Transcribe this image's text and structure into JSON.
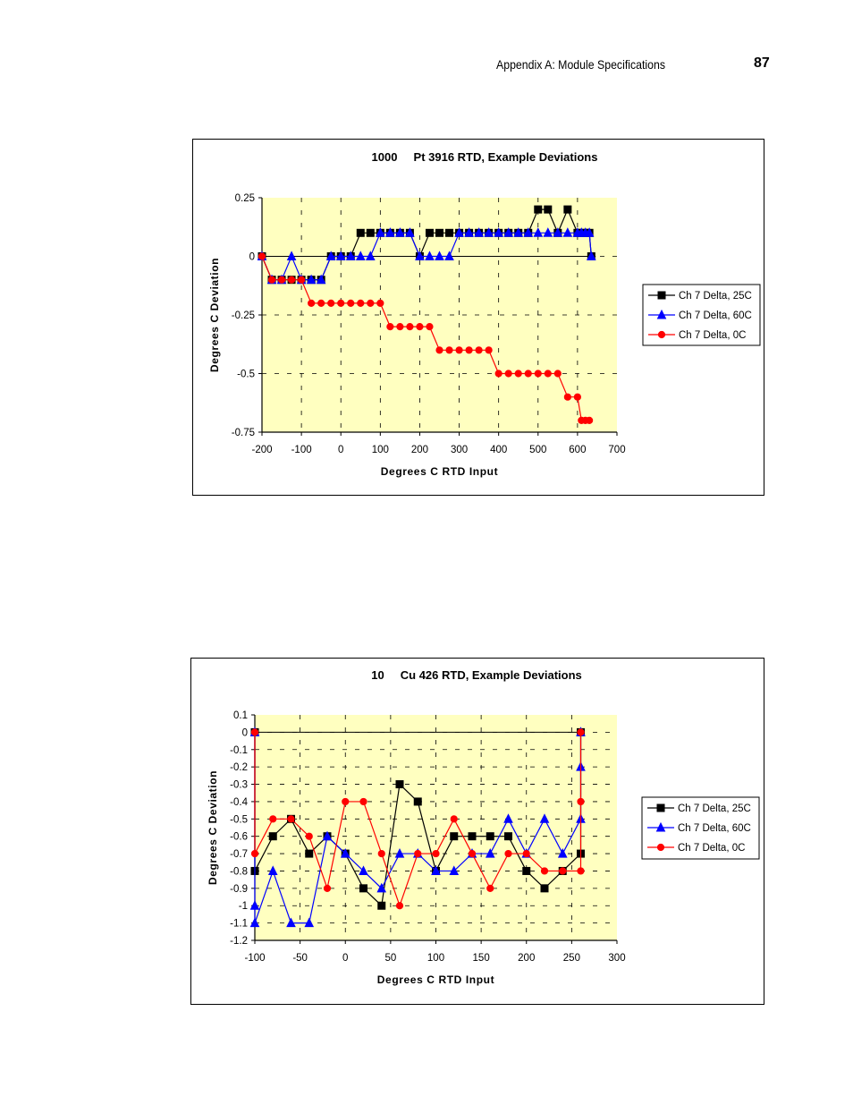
{
  "header": {
    "section_title": "Appendix A: Module Specifications",
    "page_number": "87"
  },
  "colors": {
    "plot_background": "#FFFFC0",
    "series_25c": "#000000",
    "series_60c": "#0000FF",
    "series_0c": "#FF0000"
  },
  "chart_data": [
    {
      "type": "line",
      "title": "1000     Pt 3916 RTD, Example Deviations",
      "xlabel": "Degrees C RTD Input",
      "ylabel": "Degrees C Deviation",
      "xlim": [
        -200,
        700
      ],
      "ylim": [
        -0.75,
        0.25
      ],
      "xticks": [
        -200,
        -100,
        0,
        100,
        200,
        300,
        400,
        500,
        600,
        700
      ],
      "yticks": [
        0.25,
        0,
        -0.25,
        -0.5,
        -0.75
      ],
      "xtick_labels": [
        "-200",
        "-100",
        "0",
        "100",
        "200",
        "300",
        "400",
        "500",
        "600",
        "700"
      ],
      "ytick_labels": [
        "0.25",
        "0",
        "-0.25",
        "-0.5",
        "-0.75"
      ],
      "grid": true,
      "legend": "right",
      "series": [
        {
          "name": "Ch 7 Delta, 25C",
          "marker": "square",
          "x": [
            -200,
            -175,
            -150,
            -125,
            -100,
            -75,
            -50,
            -25,
            0,
            25,
            50,
            75,
            100,
            125,
            150,
            175,
            200,
            225,
            250,
            275,
            300,
            325,
            350,
            375,
            400,
            425,
            450,
            475,
            500,
            525,
            550,
            575,
            600,
            610,
            620,
            630,
            635
          ],
          "y": [
            0,
            -0.1,
            -0.1,
            -0.1,
            -0.1,
            -0.1,
            -0.1,
            0,
            0,
            0,
            0.1,
            0.1,
            0.1,
            0.1,
            0.1,
            0.1,
            0,
            0.1,
            0.1,
            0.1,
            0.1,
            0.1,
            0.1,
            0.1,
            0.1,
            0.1,
            0.1,
            0.1,
            0.2,
            0.2,
            0.1,
            0.2,
            0.1,
            0.1,
            0.1,
            0.1,
            0
          ]
        },
        {
          "name": "Ch 7 Delta, 60C",
          "marker": "triangle",
          "x": [
            -200,
            -175,
            -150,
            -125,
            -100,
            -75,
            -50,
            -25,
            0,
            25,
            50,
            75,
            100,
            125,
            150,
            175,
            200,
            225,
            250,
            275,
            300,
            325,
            350,
            375,
            400,
            425,
            450,
            475,
            500,
            525,
            550,
            575,
            600,
            610,
            620,
            630,
            635
          ],
          "y": [
            0,
            -0.1,
            -0.1,
            0,
            -0.1,
            -0.1,
            -0.1,
            0,
            0,
            0,
            0,
            0,
            0.1,
            0.1,
            0.1,
            0.1,
            0,
            0,
            0,
            0,
            0.1,
            0.1,
            0.1,
            0.1,
            0.1,
            0.1,
            0.1,
            0.1,
            0.1,
            0.1,
            0.1,
            0.1,
            0.1,
            0.1,
            0.1,
            0.1,
            0
          ]
        },
        {
          "name": "Ch 7 Delta, 0C",
          "marker": "circle",
          "x": [
            -200,
            -175,
            -150,
            -125,
            -100,
            -75,
            -50,
            -25,
            0,
            25,
            50,
            75,
            100,
            125,
            150,
            175,
            200,
            225,
            250,
            275,
            300,
            325,
            350,
            375,
            400,
            425,
            450,
            475,
            500,
            525,
            550,
            575,
            600,
            610,
            620,
            630
          ],
          "y": [
            0,
            -0.1,
            -0.1,
            -0.1,
            -0.1,
            -0.2,
            -0.2,
            -0.2,
            -0.2,
            -0.2,
            -0.2,
            -0.2,
            -0.2,
            -0.3,
            -0.3,
            -0.3,
            -0.3,
            -0.3,
            -0.4,
            -0.4,
            -0.4,
            -0.4,
            -0.4,
            -0.4,
            -0.5,
            -0.5,
            -0.5,
            -0.5,
            -0.5,
            -0.5,
            -0.5,
            -0.6,
            -0.6,
            -0.7,
            -0.7,
            -0.7
          ]
        }
      ]
    },
    {
      "type": "line",
      "title": "10     Cu 426 RTD, Example Deviations",
      "xlabel": "Degrees C RTD Input",
      "ylabel": "Degrees C Deviation",
      "xlim": [
        -100,
        300
      ],
      "ylim": [
        -1.2,
        0.1
      ],
      "xticks": [
        -100,
        -50,
        0,
        50,
        100,
        150,
        200,
        250,
        300
      ],
      "yticks": [
        0.1,
        0,
        -0.1,
        -0.2,
        -0.3,
        -0.4,
        -0.5,
        -0.6,
        -0.7,
        -0.8,
        -0.9,
        -1,
        -1.1,
        -1.2
      ],
      "xtick_labels": [
        "-100",
        "-50",
        "0",
        "50",
        "100",
        "150",
        "200",
        "250",
        "300"
      ],
      "ytick_labels": [
        "0.1",
        "0",
        "-0.1",
        "-0.2",
        "-0.3",
        "-0.4",
        "-0.5",
        "-0.6",
        "-0.7",
        "-0.8",
        "-0.9",
        "-1",
        "-1.1",
        "-1.2"
      ],
      "grid": true,
      "legend": "right",
      "series": [
        {
          "name": "Ch 7 Delta, 25C",
          "marker": "square",
          "x": [
            -100,
            -100,
            -80,
            -60,
            -40,
            -20,
            0,
            20,
            40,
            60,
            80,
            100,
            120,
            140,
            160,
            180,
            200,
            220,
            240,
            260,
            260
          ],
          "y": [
            0,
            -0.8,
            -0.6,
            -0.5,
            -0.7,
            -0.6,
            -0.7,
            -0.9,
            -1.0,
            -0.3,
            -0.4,
            -0.8,
            -0.6,
            -0.6,
            -0.6,
            -0.6,
            -0.8,
            -0.9,
            -0.8,
            -0.7,
            0
          ]
        },
        {
          "name": "Ch 7 Delta, 60C",
          "marker": "triangle",
          "x": [
            -100,
            -100,
            -100,
            -80,
            -60,
            -40,
            -20,
            0,
            20,
            40,
            60,
            80,
            100,
            120,
            140,
            160,
            180,
            200,
            220,
            240,
            260,
            260,
            260
          ],
          "y": [
            0,
            -1.0,
            -1.1,
            -0.8,
            -1.1,
            -1.1,
            -0.6,
            -0.7,
            -0.8,
            -0.9,
            -0.7,
            -0.7,
            -0.8,
            -0.8,
            -0.7,
            -0.7,
            -0.5,
            -0.7,
            -0.5,
            -0.7,
            -0.5,
            -0.2,
            0
          ]
        },
        {
          "name": "Ch 7 Delta, 0C",
          "marker": "circle",
          "x": [
            -100,
            -100,
            -80,
            -60,
            -40,
            -20,
            0,
            20,
            40,
            60,
            80,
            100,
            120,
            140,
            160,
            180,
            200,
            220,
            240,
            260,
            260,
            260
          ],
          "y": [
            0,
            -0.7,
            -0.5,
            -0.5,
            -0.6,
            -0.9,
            -0.4,
            -0.4,
            -0.7,
            -1.0,
            -0.7,
            -0.7,
            -0.5,
            -0.7,
            -0.9,
            -0.7,
            -0.7,
            -0.8,
            -0.8,
            -0.8,
            -0.4,
            0
          ]
        }
      ]
    }
  ]
}
